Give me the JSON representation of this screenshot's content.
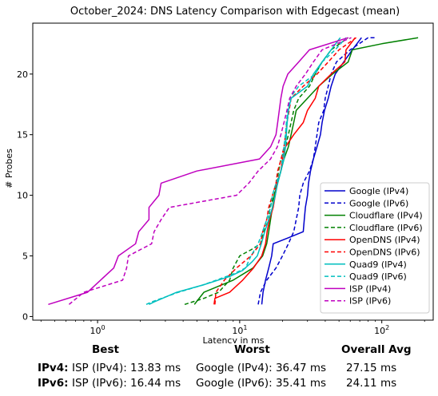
{
  "chart_data": {
    "type": "line",
    "title": "October_2024: DNS Latency Comparison with Edgecast (mean)",
    "xlabel": "Latency in ms",
    "ylabel": "# Probes",
    "xscale": "log",
    "xlim": [
      0.35,
      230
    ],
    "ylim": [
      -0.3,
      24.2
    ],
    "xticks": [
      {
        "value": 1,
        "base": "10",
        "exp": "0"
      },
      {
        "value": 10,
        "base": "10",
        "exp": "1"
      },
      {
        "value": 100,
        "base": "10",
        "exp": "2"
      }
    ],
    "yticks": [
      0,
      5,
      10,
      15,
      20
    ],
    "grid": false,
    "legend_position": "lower-right",
    "series": [
      {
        "name": "Google (IPv4)",
        "color": "#0000cc",
        "dash": "solid",
        "points": [
          [
            14.3,
            1
          ],
          [
            14.6,
            2
          ],
          [
            15.2,
            3
          ],
          [
            16.0,
            4
          ],
          [
            16.8,
            5
          ],
          [
            17.2,
            6
          ],
          [
            22,
            6.5
          ],
          [
            28,
            7
          ],
          [
            28.5,
            8
          ],
          [
            29,
            9
          ],
          [
            30,
            10
          ],
          [
            30.5,
            11
          ],
          [
            31.5,
            12
          ],
          [
            33,
            13
          ],
          [
            35,
            14
          ],
          [
            37,
            15
          ],
          [
            38,
            16
          ],
          [
            39.5,
            17
          ],
          [
            42,
            18
          ],
          [
            44,
            19
          ],
          [
            47,
            20
          ],
          [
            54,
            21
          ],
          [
            62,
            22
          ],
          [
            72,
            23
          ]
        ]
      },
      {
        "name": "Google (IPv6)",
        "color": "#0000cc",
        "dash": "dashed",
        "points": [
          [
            13.5,
            1
          ],
          [
            14,
            2
          ],
          [
            15.5,
            3
          ],
          [
            18,
            4
          ],
          [
            20,
            5
          ],
          [
            22,
            6
          ],
          [
            24,
            7
          ],
          [
            25,
            8
          ],
          [
            26,
            9
          ],
          [
            26.5,
            10
          ],
          [
            28,
            11
          ],
          [
            31,
            12
          ],
          [
            33,
            13
          ],
          [
            34,
            14
          ],
          [
            35,
            15
          ],
          [
            36,
            16
          ],
          [
            39,
            17
          ],
          [
            40,
            18
          ],
          [
            42,
            19
          ],
          [
            44,
            20
          ],
          [
            48,
            21
          ],
          [
            60,
            22
          ],
          [
            80,
            23
          ],
          [
            92,
            23
          ]
        ]
      },
      {
        "name": "Cloudflare (IPv4)",
        "color": "#008000",
        "dash": "solid",
        "points": [
          [
            4.8,
            1
          ],
          [
            5.6,
            2
          ],
          [
            9,
            3
          ],
          [
            12.4,
            4
          ],
          [
            14.5,
            5
          ],
          [
            15.5,
            6
          ],
          [
            16,
            7
          ],
          [
            16.5,
            8
          ],
          [
            17,
            9
          ],
          [
            17.5,
            10
          ],
          [
            18.5,
            11
          ],
          [
            19.5,
            12
          ],
          [
            20.5,
            13
          ],
          [
            22,
            14
          ],
          [
            23,
            15
          ],
          [
            24,
            16
          ],
          [
            25,
            17
          ],
          [
            30,
            18
          ],
          [
            36,
            19
          ],
          [
            45,
            20
          ],
          [
            58,
            21
          ],
          [
            62,
            22
          ],
          [
            100,
            22.5
          ],
          [
            180,
            23
          ]
        ]
      },
      {
        "name": "Cloudflare (IPv6)",
        "color": "#008000",
        "dash": "dashed",
        "points": [
          [
            4.1,
            1
          ],
          [
            5.6,
            1.5
          ],
          [
            7.1,
            2
          ],
          [
            8.5,
            3
          ],
          [
            9,
            4
          ],
          [
            10,
            5
          ],
          [
            12,
            5.5
          ],
          [
            14,
            6
          ],
          [
            14.8,
            7
          ],
          [
            16,
            8
          ],
          [
            16.3,
            9
          ],
          [
            17.5,
            10
          ],
          [
            18.2,
            11
          ],
          [
            18.8,
            12
          ],
          [
            19.5,
            13
          ],
          [
            21,
            14
          ],
          [
            22,
            15
          ],
          [
            23,
            16
          ],
          [
            24,
            17
          ],
          [
            26,
            18
          ],
          [
            31,
            19
          ],
          [
            34,
            20
          ],
          [
            38,
            21
          ],
          [
            44,
            22
          ],
          [
            58,
            23
          ]
        ]
      },
      {
        "name": "OpenDNS (IPv4)",
        "color": "#ff0000",
        "dash": "solid",
        "points": [
          [
            6.6,
            1
          ],
          [
            6.7,
            1.5
          ],
          [
            8.5,
            2
          ],
          [
            10.5,
            3
          ],
          [
            12.5,
            4
          ],
          [
            14.3,
            5
          ],
          [
            15.2,
            6
          ],
          [
            15.6,
            7
          ],
          [
            16.2,
            8
          ],
          [
            17.2,
            9
          ],
          [
            17.8,
            10
          ],
          [
            18.3,
            11
          ],
          [
            19.5,
            12
          ],
          [
            20,
            13
          ],
          [
            21,
            14
          ],
          [
            24,
            15
          ],
          [
            28,
            16
          ],
          [
            30,
            17
          ],
          [
            34,
            18
          ],
          [
            36,
            19
          ],
          [
            44,
            20
          ],
          [
            55,
            21
          ],
          [
            56,
            22
          ],
          [
            65,
            23
          ]
        ]
      },
      {
        "name": "OpenDNS (IPv6)",
        "color": "#ff0000",
        "dash": "dashed",
        "points": [
          [
            6.7,
            1
          ],
          [
            6.8,
            2
          ],
          [
            7.8,
            3
          ],
          [
            9.5,
            4
          ],
          [
            12,
            5
          ],
          [
            14,
            6
          ],
          [
            14.5,
            7
          ],
          [
            15.5,
            8
          ],
          [
            16,
            9
          ],
          [
            17,
            10
          ],
          [
            18,
            11
          ],
          [
            18.5,
            12
          ],
          [
            19.6,
            13
          ],
          [
            20.5,
            14
          ],
          [
            21,
            15
          ],
          [
            21.5,
            16
          ],
          [
            22.3,
            17
          ],
          [
            23,
            18
          ],
          [
            28,
            19
          ],
          [
            35,
            20
          ],
          [
            42,
            21
          ],
          [
            50,
            22
          ],
          [
            66,
            23
          ]
        ]
      },
      {
        "name": "Quad9 (IPv4)",
        "color": "#00bfbf",
        "dash": "solid",
        "points": [
          [
            2.3,
            1
          ],
          [
            2.5,
            1.2
          ],
          [
            3.6,
            2
          ],
          [
            5.5,
            2.6
          ],
          [
            8.5,
            3.3
          ],
          [
            10.5,
            3.8
          ],
          [
            12.2,
            4.5
          ],
          [
            13.3,
            5
          ],
          [
            14.2,
            6
          ],
          [
            15,
            7
          ],
          [
            16,
            8
          ],
          [
            17,
            9
          ],
          [
            17.8,
            10
          ],
          [
            18.5,
            11
          ],
          [
            19.5,
            12
          ],
          [
            20.5,
            13
          ],
          [
            21,
            14
          ],
          [
            21.3,
            15
          ],
          [
            21.6,
            16
          ],
          [
            22,
            17
          ],
          [
            23,
            18
          ],
          [
            30,
            19
          ],
          [
            33,
            20
          ],
          [
            38,
            21
          ],
          [
            44,
            22
          ],
          [
            51,
            23
          ]
        ]
      },
      {
        "name": "Quad9 (IPv6)",
        "color": "#00bfbf",
        "dash": "dashed",
        "points": [
          [
            2.2,
            1
          ],
          [
            2.4,
            1.2
          ],
          [
            3.7,
            2
          ],
          [
            5.5,
            2.6
          ],
          [
            9,
            3.5
          ],
          [
            11,
            4
          ],
          [
            12,
            5
          ],
          [
            13.5,
            6
          ],
          [
            14.5,
            7
          ],
          [
            15.5,
            8
          ],
          [
            16.5,
            9
          ],
          [
            17,
            10
          ],
          [
            18,
            11
          ],
          [
            19.6,
            12
          ],
          [
            20,
            13
          ],
          [
            20.5,
            14
          ],
          [
            21,
            15
          ],
          [
            21.3,
            16
          ],
          [
            21.8,
            17
          ],
          [
            22.5,
            18
          ],
          [
            26,
            19
          ],
          [
            34,
            20
          ],
          [
            38,
            21
          ],
          [
            47,
            22
          ],
          [
            56,
            23
          ]
        ]
      },
      {
        "name": "ISP (IPv4)",
        "color": "#bf00bf",
        "dash": "solid",
        "points": [
          [
            0.45,
            1
          ],
          [
            0.85,
            2
          ],
          [
            1.05,
            3
          ],
          [
            1.3,
            4
          ],
          [
            1.4,
            5
          ],
          [
            1.85,
            6
          ],
          [
            1.95,
            7
          ],
          [
            2.3,
            8
          ],
          [
            2.3,
            9
          ],
          [
            2.7,
            10
          ],
          [
            2.8,
            11
          ],
          [
            5,
            12
          ],
          [
            13.8,
            13
          ],
          [
            16.5,
            14
          ],
          [
            18,
            15
          ],
          [
            18.5,
            16
          ],
          [
            19,
            17
          ],
          [
            19.5,
            18
          ],
          [
            20.2,
            19
          ],
          [
            21.8,
            20
          ],
          [
            26,
            21
          ],
          [
            31,
            22
          ],
          [
            58,
            23
          ]
        ]
      },
      {
        "name": "ISP (IPv6)",
        "color": "#bf00bf",
        "dash": "dashed",
        "points": [
          [
            0.63,
            1
          ],
          [
            0.8,
            2
          ],
          [
            1.5,
            3
          ],
          [
            1.6,
            4
          ],
          [
            1.65,
            5
          ],
          [
            2.4,
            6
          ],
          [
            2.5,
            7
          ],
          [
            2.8,
            8
          ],
          [
            3.2,
            9
          ],
          [
            9.5,
            10
          ],
          [
            11.6,
            11
          ],
          [
            13.5,
            12
          ],
          [
            16.5,
            13
          ],
          [
            18.4,
            14
          ],
          [
            19.5,
            15
          ],
          [
            20.5,
            16
          ],
          [
            21.5,
            17
          ],
          [
            22.5,
            18
          ],
          [
            25,
            19
          ],
          [
            29,
            20
          ],
          [
            33,
            21
          ],
          [
            38,
            22
          ],
          [
            61,
            23
          ]
        ]
      }
    ]
  },
  "summary": {
    "headers": {
      "best": "Best",
      "worst": "Worst",
      "avg": "Overall Avg"
    },
    "rows": [
      {
        "label": "IPv4:",
        "best": "ISP (IPv4): 13.83 ms",
        "worst": "Google (IPv4): 36.47 ms",
        "avg": "27.15 ms"
      },
      {
        "label": "IPv6:",
        "best": "ISP (IPv6): 16.44 ms",
        "worst": "Google (IPv6): 35.41 ms",
        "avg": "24.11 ms"
      }
    ]
  }
}
